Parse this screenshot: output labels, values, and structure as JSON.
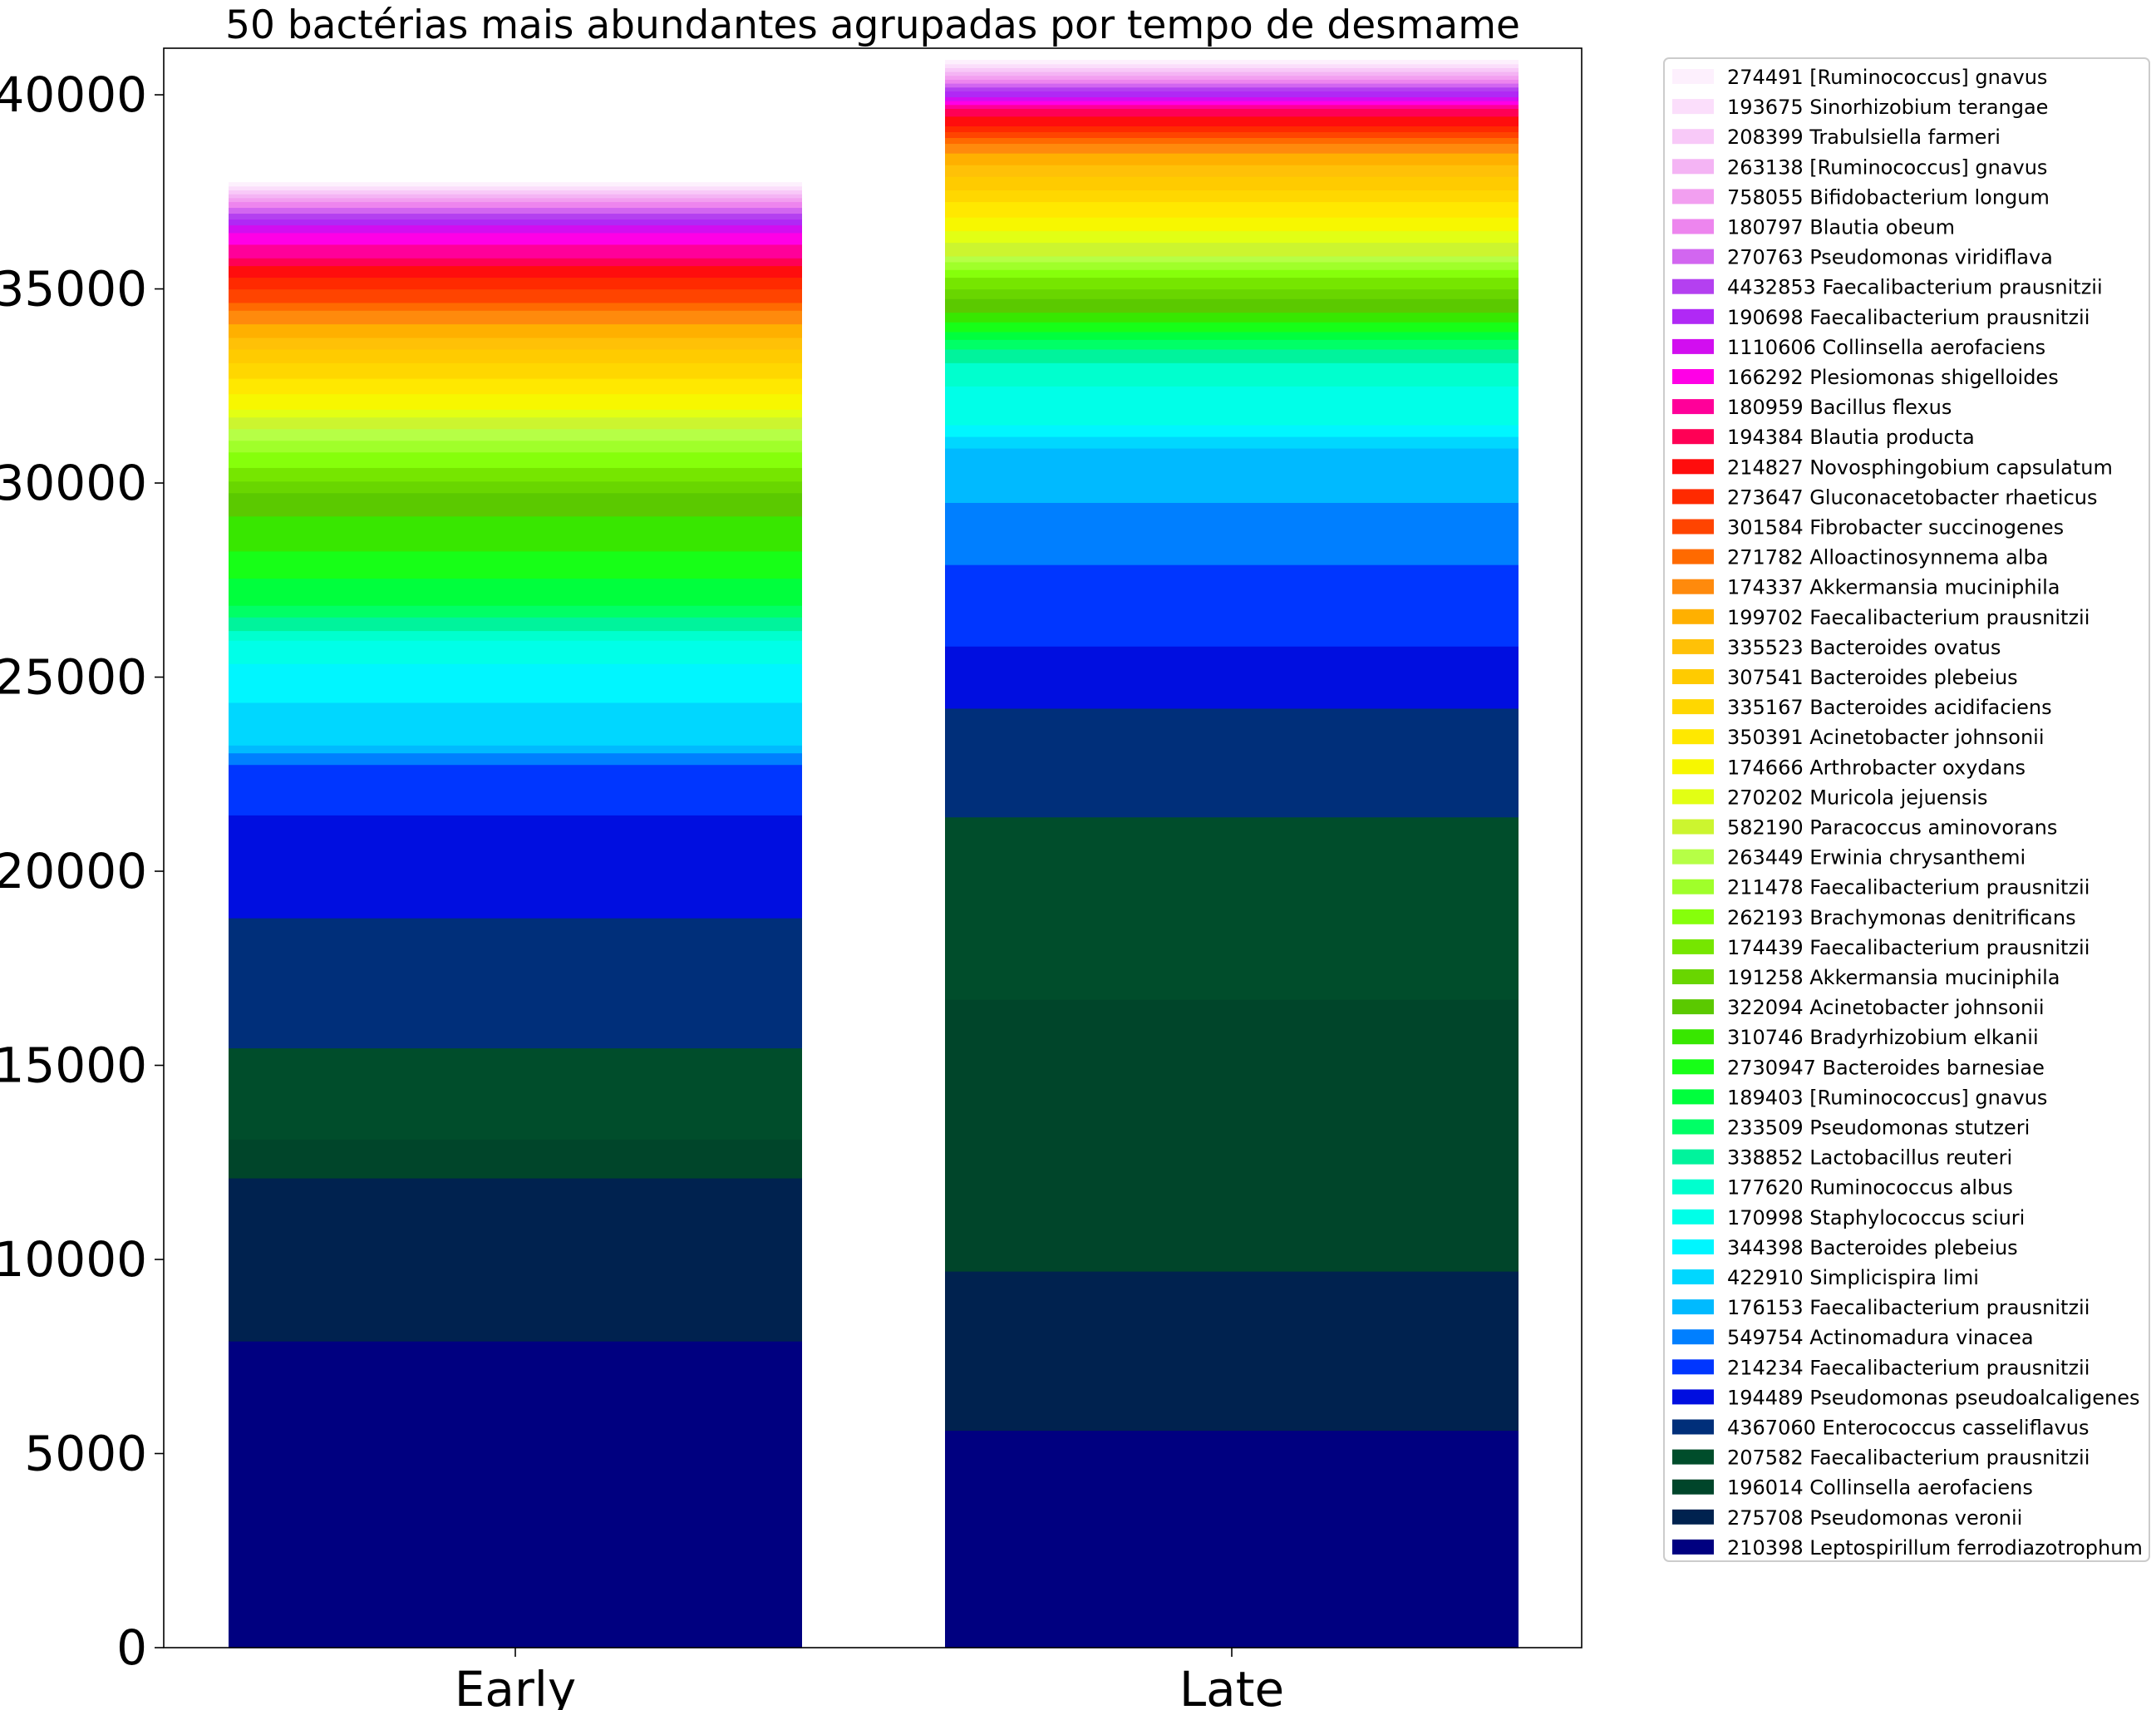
{
  "chart_data": {
    "type": "bar",
    "stacked": true,
    "title": "50 bactérias mais abundantes agrupadas por tempo de desmame",
    "xlabel": "",
    "ylabel": "",
    "categories": [
      "Early",
      "Late"
    ],
    "ylim": [
      0,
      41200
    ],
    "yticks": [
      0,
      5000,
      10000,
      15000,
      20000,
      25000,
      30000,
      35000,
      40000
    ],
    "ytick_labels": [
      "0",
      "5000",
      "10000",
      "15000",
      "20000",
      "25000",
      "30000",
      "35000",
      "40000"
    ],
    "grid": false,
    "legend_position": "outside-right",
    "series": [
      {
        "name": "210398 Leptospirillum ferrodiazotrophum",
        "color": "#000080",
        "values": [
          7900,
          5600
        ]
      },
      {
        "name": "275708 Pseudomonas veronii",
        "color": "#00224f",
        "values": [
          4200,
          4100
        ]
      },
      {
        "name": "196014 Collinsella aerofaciens",
        "color": "#00452a",
        "values": [
          1000,
          7000
        ]
      },
      {
        "name": "207582 Faecalibacterium prausnitzii",
        "color": "#004d2b",
        "values": [
          2350,
          4700
        ]
      },
      {
        "name": "4367060 Enterococcus casseliflavus",
        "color": "#002f7a",
        "values": [
          3350,
          2800
        ]
      },
      {
        "name": "194489 Pseudomonas pseudoalcaligenes",
        "color": "#000ee0",
        "values": [
          2650,
          1600
        ]
      },
      {
        "name": "214234 Faecalibacterium prausnitzii",
        "color": "#0036ff",
        "values": [
          1300,
          2100
        ]
      },
      {
        "name": "549754 Actinomadura vinacea",
        "color": "#007fff",
        "values": [
          300,
          1600
        ]
      },
      {
        "name": "176153 Faecalibacterium prausnitzii",
        "color": "#00baff",
        "values": [
          200,
          1400
        ]
      },
      {
        "name": "422910 Simplicispira limi",
        "color": "#00d7ff",
        "values": [
          1100,
          300
        ]
      },
      {
        "name": "344398 Bacteroides plebeius",
        "color": "#00f6ff",
        "values": [
          1000,
          300
        ]
      },
      {
        "name": "170998 Staphylococcus sciuri",
        "color": "#00ffe8",
        "values": [
          600,
          1000
        ]
      },
      {
        "name": "177620 Ruminococcus albus",
        "color": "#00ffce",
        "values": [
          250,
          600
        ]
      },
      {
        "name": "338852 Lactobacillus reuteri",
        "color": "#00f39c",
        "values": [
          350,
          350
        ]
      },
      {
        "name": "233509 Pseudomonas stutzeri",
        "color": "#00ff66",
        "values": [
          300,
          250
        ]
      },
      {
        "name": "189403 [Ruminococcus] gnavus",
        "color": "#00ff3d",
        "values": [
          700,
          200
        ]
      },
      {
        "name": "2730947 Bacteroides barnesiae",
        "color": "#17ff17",
        "values": [
          700,
          250
        ]
      },
      {
        "name": "310746 Bradyrhizobium elkanii",
        "color": "#38e700",
        "values": [
          900,
          250
        ]
      },
      {
        "name": "322094 Acinetobacter johnsonii",
        "color": "#5bc900",
        "values": [
          600,
          350
        ]
      },
      {
        "name": "191258 Akkermansia muciniphila",
        "color": "#69d600",
        "values": [
          300,
          250
        ]
      },
      {
        "name": "174439 Faecalibacterium prausnitzii",
        "color": "#76e600",
        "values": [
          350,
          300
        ]
      },
      {
        "name": "262193 Brachymonas denitrificans",
        "color": "#86ff0b",
        "values": [
          400,
          200
        ]
      },
      {
        "name": "211478 Faecalibacterium prausnitzii",
        "color": "#a0ff2a",
        "values": [
          300,
          200
        ]
      },
      {
        "name": "263449 Erwinia chrysanthemi",
        "color": "#b6ff46",
        "values": [
          300,
          150
        ]
      },
      {
        "name": "582190 Paracoccus aminovorans",
        "color": "#ccf52f",
        "values": [
          300,
          350
        ]
      },
      {
        "name": "270202 Muricola jejuensis",
        "color": "#e2ff14",
        "values": [
          200,
          300
        ]
      },
      {
        "name": "174666 Arthrobacter oxydans",
        "color": "#f7f700",
        "values": [
          400,
          350
        ]
      },
      {
        "name": "350391 Acinetobacter johnsonii",
        "color": "#ffe800",
        "values": [
          400,
          400
        ]
      },
      {
        "name": "335167 Bacteroides acidifaciens",
        "color": "#ffd700",
        "values": [
          400,
          300
        ]
      },
      {
        "name": "307541 Bacteroides plebeius",
        "color": "#ffcb00",
        "values": [
          350,
          350
        ]
      },
      {
        "name": "335523 Bacteroides ovatus",
        "color": "#ffc107",
        "values": [
          300,
          300
        ]
      },
      {
        "name": "199702 Faecalibacterium prausnitzii",
        "color": "#ffb000",
        "values": [
          350,
          300
        ]
      },
      {
        "name": "174337 Akkermansia muciniphila",
        "color": "#ff8a0c",
        "values": [
          350,
          250
        ]
      },
      {
        "name": "271782 Alloactinosynnema alba",
        "color": "#ff6a00",
        "values": [
          200,
          150
        ]
      },
      {
        "name": "301584 Fibrobacter succinogenes",
        "color": "#ff4400",
        "values": [
          350,
          150
        ]
      },
      {
        "name": "273647 Gluconacetobacter rhaeticus",
        "color": "#ff2a00",
        "values": [
          300,
          150
        ]
      },
      {
        "name": "214827 Novosphingobium capsulatum",
        "color": "#ff0d0d",
        "values": [
          300,
          250
        ]
      },
      {
        "name": "194384 Blautia producta",
        "color": "#ff0055",
        "values": [
          200,
          200
        ]
      },
      {
        "name": "180959 Bacillus flexus",
        "color": "#ff0099",
        "values": [
          350,
          100
        ]
      },
      {
        "name": "166292 Plesiomonas shigelloides",
        "color": "#ff00e6",
        "values": [
          300,
          100
        ]
      },
      {
        "name": "1110606 Collinsella aerofaciens",
        "color": "#d20ef0",
        "values": [
          200,
          100
        ]
      },
      {
        "name": "190698 Faecalibacterium prausnitzii",
        "color": "#b029f5",
        "values": [
          150,
          150
        ]
      },
      {
        "name": "4432853 Faecalibacterium prausnitzii",
        "color": "#b440f0",
        "values": [
          150,
          100
        ]
      },
      {
        "name": "270763 Pseudomonas viridiflava",
        "color": "#d266f0",
        "values": [
          150,
          100
        ]
      },
      {
        "name": "180797 Blautia obeum",
        "color": "#ed85ee",
        "values": [
          150,
          100
        ]
      },
      {
        "name": "758055 Bifidobacterium longum",
        "color": "#f29ff0",
        "values": [
          100,
          100
        ]
      },
      {
        "name": "263138 [Ruminococcus] gnavus",
        "color": "#f4b4f4",
        "values": [
          100,
          100
        ]
      },
      {
        "name": "208399 Trabulsiella farmeri",
        "color": "#f8c9f8",
        "values": [
          100,
          100
        ]
      },
      {
        "name": "193675 Sinorhizobium terangae",
        "color": "#fbdefb",
        "values": [
          100,
          100
        ]
      },
      {
        "name": "274491 [Ruminococcus] gnavus",
        "color": "#fdf0fd",
        "values": [
          100,
          100
        ]
      }
    ]
  }
}
